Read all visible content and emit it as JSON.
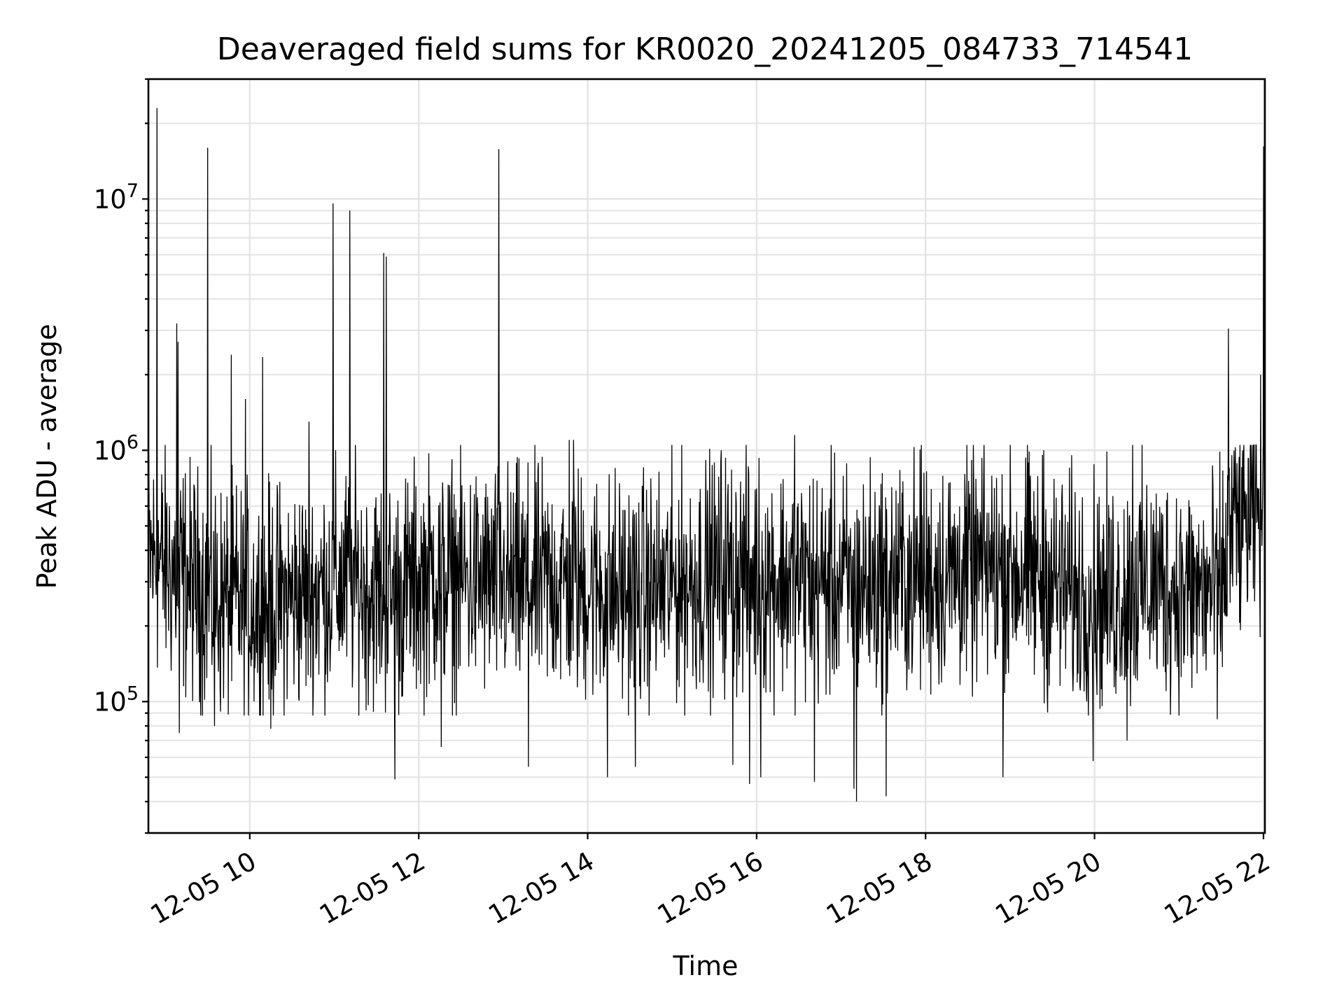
{
  "chart_data": {
    "type": "line",
    "title": "Deaveraged field sums for KR0020_20241205_084733_714541",
    "xlabel": "Time",
    "ylabel": "Peak ADU - average",
    "x_scale": "time",
    "y_scale": "log",
    "xlim": [
      "2024-12-05 08:48",
      "2024-12-05 22:01"
    ],
    "ylim": [
      30000,
      30000000
    ],
    "x_tick_labels": [
      "12-05 10",
      "12-05 12",
      "12-05 14",
      "12-05 16",
      "12-05 18",
      "12-05 20",
      "12-05 22"
    ],
    "x_tick_values": [
      "2024-12-05 10:00",
      "2024-12-05 12:00",
      "2024-12-05 14:00",
      "2024-12-05 16:00",
      "2024-12-05 18:00",
      "2024-12-05 20:00",
      "2024-12-05 22:00"
    ],
    "y_ticks": [
      {
        "value": 100000,
        "base": "10",
        "exp": "5"
      },
      {
        "value": 1000000,
        "base": "10",
        "exp": "6"
      },
      {
        "value": 10000000,
        "base": "10",
        "exp": "7"
      }
    ],
    "grid": true,
    "series": [
      {
        "color": "#000000",
        "baseline_profile": [
          [
            "2024-12-05 08:48",
            380000
          ],
          [
            "2024-12-05 09:10",
            320000
          ],
          [
            "2024-12-05 09:40",
            250000
          ],
          [
            "2024-12-05 10:10",
            240000
          ],
          [
            "2024-12-05 10:40",
            270000
          ],
          [
            "2024-12-05 11:10",
            300000
          ],
          [
            "2024-12-05 11:40",
            260000
          ],
          [
            "2024-12-05 12:10",
            320000
          ],
          [
            "2024-12-05 12:40",
            300000
          ],
          [
            "2024-12-05 13:10",
            290000
          ],
          [
            "2024-12-05 13:40",
            300000
          ],
          [
            "2024-12-05 14:10",
            280000
          ],
          [
            "2024-12-05 14:40",
            270000
          ],
          [
            "2024-12-05 15:10",
            300000
          ],
          [
            "2024-12-05 15:40",
            330000
          ],
          [
            "2024-12-05 16:10",
            310000
          ],
          [
            "2024-12-05 16:40",
            300000
          ],
          [
            "2024-12-05 17:10",
            290000
          ],
          [
            "2024-12-05 17:40",
            310000
          ],
          [
            "2024-12-05 18:10",
            320000
          ],
          [
            "2024-12-05 18:40",
            340000
          ],
          [
            "2024-12-05 19:10",
            330000
          ],
          [
            "2024-12-05 19:40",
            280000
          ],
          [
            "2024-12-05 20:10",
            260000
          ],
          [
            "2024-12-05 20:40",
            300000
          ],
          [
            "2024-12-05 21:10",
            270000
          ],
          [
            "2024-12-05 21:30",
            280000
          ],
          [
            "2024-12-05 21:38",
            500000
          ],
          [
            "2024-12-05 21:50",
            520000
          ],
          [
            "2024-12-05 22:01",
            600000
          ]
        ],
        "spikes": [
          [
            "2024-12-05 08:54",
            23000000
          ],
          [
            "2024-12-05 09:08",
            3200000
          ],
          [
            "2024-12-05 09:09",
            2700000
          ],
          [
            "2024-12-05 09:30",
            16000000
          ],
          [
            "2024-12-05 09:47",
            2400000
          ],
          [
            "2024-12-05 09:57",
            1600000
          ],
          [
            "2024-12-05 10:09",
            2350000
          ],
          [
            "2024-12-05 10:42",
            1300000
          ],
          [
            "2024-12-05 10:59",
            9600000
          ],
          [
            "2024-12-05 11:11",
            9000000
          ],
          [
            "2024-12-05 11:35",
            6100000
          ],
          [
            "2024-12-05 11:37",
            5900000
          ],
          [
            "2024-12-05 12:57",
            15800000
          ],
          [
            "2024-12-05 13:47",
            1100000
          ],
          [
            "2024-12-05 13:50",
            1100000
          ],
          [
            "2024-12-05 15:35",
            1000000
          ],
          [
            "2024-12-05 16:27",
            1150000
          ],
          [
            "2024-12-05 17:57",
            1050000
          ],
          [
            "2024-12-05 19:24",
            1000000
          ],
          [
            "2024-12-05 20:27",
            1050000
          ],
          [
            "2024-12-05 21:27",
            1650000
          ],
          [
            "2024-12-05 21:35",
            3050000
          ],
          [
            "2024-12-05 21:58",
            2000000
          ],
          [
            "2024-12-05 22:00",
            16200000
          ]
        ],
        "dips": [
          [
            "2024-12-05 09:10",
            75000
          ],
          [
            "2024-12-05 09:35",
            80000
          ],
          [
            "2024-12-05 10:15",
            78000
          ],
          [
            "2024-12-05 11:43",
            49000
          ],
          [
            "2024-12-05 12:16",
            66000
          ],
          [
            "2024-12-05 13:18",
            55000
          ],
          [
            "2024-12-05 14:14",
            50000
          ],
          [
            "2024-12-05 14:34",
            55000
          ],
          [
            "2024-12-05 15:43",
            56000
          ],
          [
            "2024-12-05 15:55",
            47000
          ],
          [
            "2024-12-05 16:03",
            50000
          ],
          [
            "2024-12-05 16:41",
            48000
          ],
          [
            "2024-12-05 17:09",
            45000
          ],
          [
            "2024-12-05 17:11",
            40000
          ],
          [
            "2024-12-05 17:32",
            42000
          ],
          [
            "2024-12-05 18:55",
            50000
          ],
          [
            "2024-12-05 19:59",
            58000
          ],
          [
            "2024-12-05 20:23",
            70000
          ],
          [
            "2024-12-05 21:27",
            85000
          ]
        ],
        "noise_band": {
          "low": 110000,
          "high": 750000
        }
      }
    ]
  }
}
